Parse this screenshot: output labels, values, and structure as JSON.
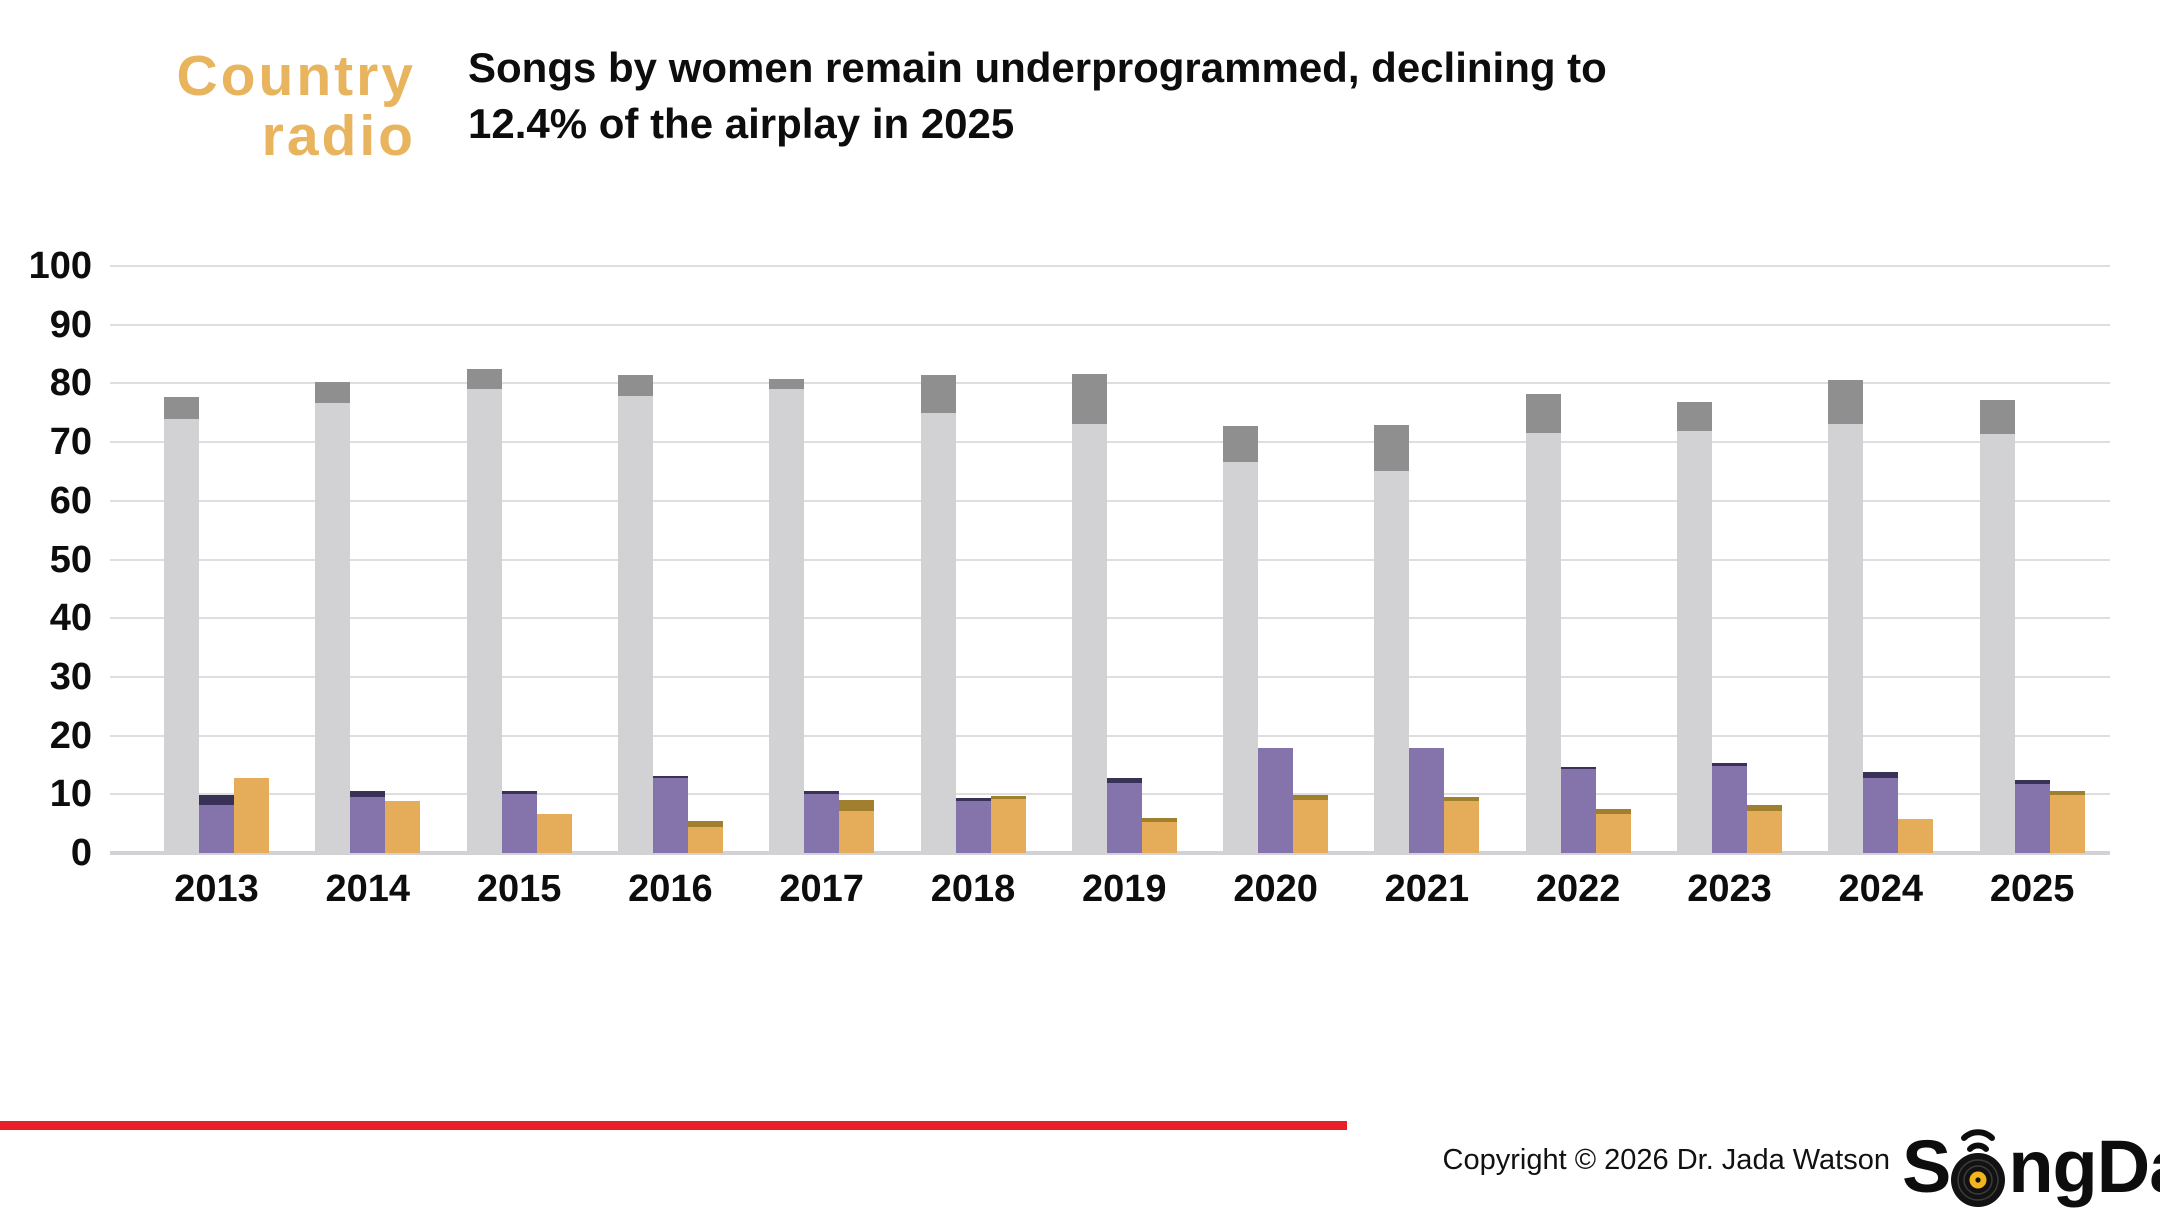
{
  "brand_logo": {
    "line1": "Country",
    "line2": "radio",
    "color": "#e9b45e"
  },
  "header": {
    "title_line1": "Songs by women remain underprogrammed, declining to",
    "title_line2": "12.4% of the airplay in 2025"
  },
  "footer": {
    "copyright": "Copyright © 2026 Dr. Jada Watson",
    "brand_s": "S",
    "brand_rest": "ngData",
    "rule_color": "#e8202a"
  },
  "chart_data": {
    "type": "bar",
    "stacked": true,
    "title": "Songs by women remain underprogrammed, declining to 12.4% of the airplay in 2025",
    "categories": [
      "2013",
      "2014",
      "2015",
      "2016",
      "2017",
      "2018",
      "2019",
      "2020",
      "2021",
      "2022",
      "2023",
      "2024",
      "2025"
    ],
    "series": [
      {
        "name": "gray-base",
        "color": "#d2d2d4",
        "values": [
          74.0,
          76.7,
          79.0,
          77.8,
          79.0,
          74.9,
          73.1,
          66.6,
          65.1,
          71.5,
          71.9,
          73.0,
          71.4
        ]
      },
      {
        "name": "gray-cap",
        "color": "#8f8f8f",
        "values": [
          3.6,
          3.5,
          3.4,
          3.7,
          1.7,
          6.5,
          8.5,
          6.1,
          7.8,
          6.7,
          4.9,
          7.6,
          5.7
        ]
      },
      {
        "name": "purple-base",
        "color": "#8573ac",
        "values": [
          8.2,
          9.6,
          10.0,
          12.8,
          10.0,
          8.8,
          11.9,
          17.9,
          17.9,
          14.3,
          14.8,
          12.8,
          11.7
        ]
      },
      {
        "name": "purple-cap",
        "color": "#3a3157",
        "values": [
          1.6,
          1.0,
          0.6,
          0.4,
          0.6,
          0.5,
          0.8,
          0.0,
          0.0,
          0.3,
          0.5,
          1.0,
          0.7
        ]
      },
      {
        "name": "gold-base",
        "color": "#e5ad59",
        "values": [
          12.8,
          8.9,
          6.7,
          4.5,
          7.2,
          9.2,
          5.2,
          9.1,
          8.8,
          6.7,
          7.2,
          5.8,
          9.9
        ]
      },
      {
        "name": "gold-cap",
        "color": "#a07f2e",
        "values": [
          0.0,
          0.0,
          0.0,
          0.9,
          1.9,
          0.5,
          0.8,
          0.8,
          0.8,
          0.8,
          0.9,
          0.0,
          0.6
        ]
      }
    ],
    "group_totals": {
      "gray": [
        77.6,
        80.2,
        82.4,
        81.5,
        80.7,
        81.4,
        81.6,
        72.7,
        72.9,
        78.2,
        76.8,
        80.6,
        77.1
      ],
      "purple": [
        9.8,
        10.6,
        10.6,
        13.2,
        10.6,
        9.3,
        12.7,
        17.9,
        17.9,
        14.6,
        15.3,
        13.8,
        12.4
      ],
      "gold": [
        12.8,
        8.9,
        6.7,
        5.4,
        9.1,
        9.7,
        6.0,
        9.9,
        9.6,
        7.5,
        8.1,
        5.8,
        10.5
      ]
    },
    "ylim": [
      0,
      100
    ],
    "yticks": [
      0,
      10,
      20,
      30,
      40,
      50,
      60,
      70,
      80,
      90,
      100
    ],
    "grid": true,
    "gridline_color": "#dedede",
    "legend": null,
    "xlabel": "",
    "ylabel": ""
  }
}
